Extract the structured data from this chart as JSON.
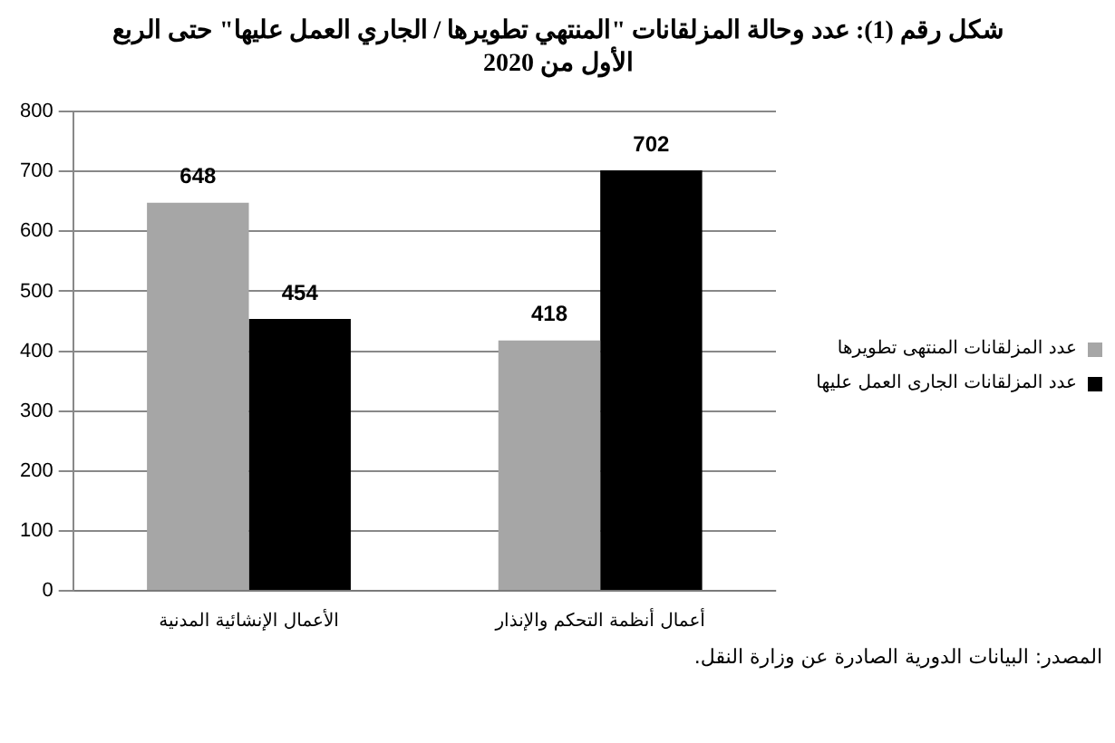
{
  "chart_data": {
    "type": "bar",
    "title": "شكل رقم (1): عدد وحالة المزلقانات \"المنتهي تطويرها / الجاري العمل عليها\" حتى الربع الأول من 2020",
    "categories": [
      "الأعمال الإنشائية المدنية",
      "أعمال أنظمة التحكم والإنذار"
    ],
    "series": [
      {
        "name": "عدد المزلقانات المنتهى تطويرها",
        "color": "#a6a6a6",
        "values": [
          648,
          418
        ]
      },
      {
        "name": "عدد المزلقانات الجارى العمل عليها",
        "color": "#000000",
        "values": [
          454,
          702
        ]
      }
    ],
    "ylim": [
      0,
      800
    ],
    "yticks": [
      0,
      100,
      200,
      300,
      400,
      500,
      600,
      700,
      800
    ],
    "grid": "y",
    "legend": "right",
    "data_labels": true,
    "annotations": [
      "المصدر: البيانات الدورية الصادرة عن وزارة النقل."
    ]
  }
}
